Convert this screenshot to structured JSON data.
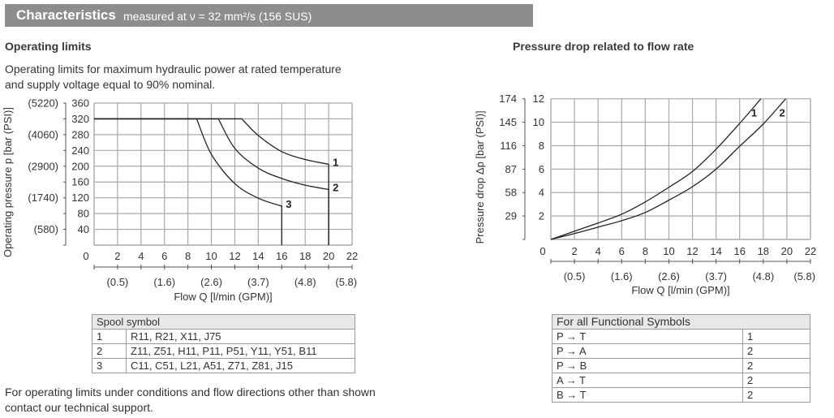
{
  "header": {
    "title": "Characteristics",
    "subtitle": "measured at ν = 32 mm²/s (156 SUS)",
    "bar_color": "#8d8d90"
  },
  "left": {
    "heading": "Operating limits",
    "description_line1": "Operating limits for maximum hydraulic power at rated temperature",
    "description_line2": "and supply voltage equal to 90% nominal.",
    "table": {
      "header": "Spool symbol",
      "rows": [
        {
          "curve": "1",
          "spools": "R11, R21, X11, J75"
        },
        {
          "curve": "2",
          "spools": "Z11, Z51, H11, P11, P51, Y11, Y51, B11"
        },
        {
          "curve": "3",
          "spools": "C11, C51, L21, A51, Z71, Z81, J15"
        }
      ]
    },
    "footer_line1": "For operating limits under conditions and flow directions other than shown",
    "footer_line2": "contact our technical support."
  },
  "right": {
    "heading": "Pressure drop related to flow rate",
    "table": {
      "header": "For all Functional Symbols",
      "rows": [
        {
          "path": "P → T",
          "curve": "1"
        },
        {
          "path": "P → A",
          "curve": "2"
        },
        {
          "path": "P → B",
          "curve": "2"
        },
        {
          "path": "A → T",
          "curve": "2"
        },
        {
          "path": "B → T",
          "curve": "2"
        }
      ]
    }
  },
  "chart_data": [
    {
      "type": "line",
      "title": "",
      "xlabel": "Flow Q [l/min (GPM)]",
      "ylabel": "Operating pressure p [bar (PSI)]",
      "xlim": [
        0,
        22
      ],
      "ylim": [
        0,
        360
      ],
      "grid": true,
      "x_ticks": [
        "0",
        "2",
        "4",
        "6",
        "8",
        "10",
        "12",
        "14",
        "16",
        "18",
        "20",
        "22"
      ],
      "y_ticks": [
        "40",
        "80",
        "120",
        "160",
        "200",
        "240",
        "280",
        "320",
        "360"
      ],
      "y2_ticks": [
        {
          "value": 40,
          "label": "(580)"
        },
        {
          "value": 120,
          "label": "(1740)"
        },
        {
          "value": 200,
          "label": "(2900)"
        },
        {
          "value": 280,
          "label": "(4060)"
        },
        {
          "value": 360,
          "label": "(5220)"
        }
      ],
      "x2_ticks": [
        {
          "value": 2,
          "label": "(0.5)"
        },
        {
          "value": 6,
          "label": "(1.6)"
        },
        {
          "value": 10,
          "label": "(2.6)"
        },
        {
          "value": 14,
          "label": "(3.7)"
        },
        {
          "value": 18,
          "label": "(4.8)"
        },
        {
          "value": 21.5,
          "label": "(5.8)"
        }
      ],
      "series": [
        {
          "name": "1",
          "points": [
            [
              0,
              320
            ],
            [
              12.6,
              320
            ],
            [
              14,
              278
            ],
            [
              16,
              237
            ],
            [
              18,
              217
            ],
            [
              20,
              205
            ],
            [
              20,
              0
            ]
          ]
        },
        {
          "name": "2",
          "points": [
            [
              0,
              320
            ],
            [
              10.6,
              320
            ],
            [
              12,
              245
            ],
            [
              14,
              195
            ],
            [
              16,
              169
            ],
            [
              18,
              152
            ],
            [
              20,
              141
            ],
            [
              20,
              0
            ]
          ]
        },
        {
          "name": "3",
          "points": [
            [
              0,
              320
            ],
            [
              8.75,
              320
            ],
            [
              10,
              230
            ],
            [
              12,
              156
            ],
            [
              14,
              119
            ],
            [
              16,
              99
            ],
            [
              16,
              0
            ]
          ]
        }
      ]
    },
    {
      "type": "line",
      "title": "",
      "xlabel": "Flow Q [l/min (GPM)]",
      "ylabel": "Pressure drop Δp [bar (PSI)]",
      "xlim": [
        0,
        22
      ],
      "ylim": [
        0,
        12
      ],
      "grid": true,
      "x_ticks": [
        "0",
        "2",
        "4",
        "6",
        "8",
        "10",
        "12",
        "14",
        "16",
        "18",
        "20",
        "22"
      ],
      "y_ticks": [
        "2",
        "4",
        "6",
        "8",
        "10",
        "12"
      ],
      "y2_ticks": [
        {
          "value": 2,
          "label": "29"
        },
        {
          "value": 4,
          "label": "58"
        },
        {
          "value": 6,
          "label": "87"
        },
        {
          "value": 8,
          "label": "116"
        },
        {
          "value": 10,
          "label": "145"
        },
        {
          "value": 12,
          "label": "174"
        }
      ],
      "x2_ticks": [
        {
          "value": 2,
          "label": "(0.5)"
        },
        {
          "value": 6,
          "label": "(1.6)"
        },
        {
          "value": 10,
          "label": "(2.6)"
        },
        {
          "value": 14,
          "label": "(3.7)"
        },
        {
          "value": 18,
          "label": "(4.8)"
        },
        {
          "value": 21.5,
          "label": "(5.8)"
        }
      ],
      "series": [
        {
          "name": "1",
          "points": [
            [
              0,
              0
            ],
            [
              2,
              0.7
            ],
            [
              4,
              1.4
            ],
            [
              6,
              2.15
            ],
            [
              8,
              3.2
            ],
            [
              10,
              4.45
            ],
            [
              12,
              5.8
            ],
            [
              14,
              7.7
            ],
            [
              16,
              9.9
            ],
            [
              17.8,
              12
            ]
          ]
        },
        {
          "name": "2",
          "points": [
            [
              0,
              0
            ],
            [
              2,
              0.5
            ],
            [
              4,
              1.05
            ],
            [
              6,
              1.6
            ],
            [
              8,
              2.3
            ],
            [
              10,
              3.35
            ],
            [
              12,
              4.5
            ],
            [
              14,
              6.0
            ],
            [
              16,
              7.95
            ],
            [
              18,
              9.85
            ],
            [
              19.9,
              12
            ]
          ]
        }
      ]
    }
  ]
}
